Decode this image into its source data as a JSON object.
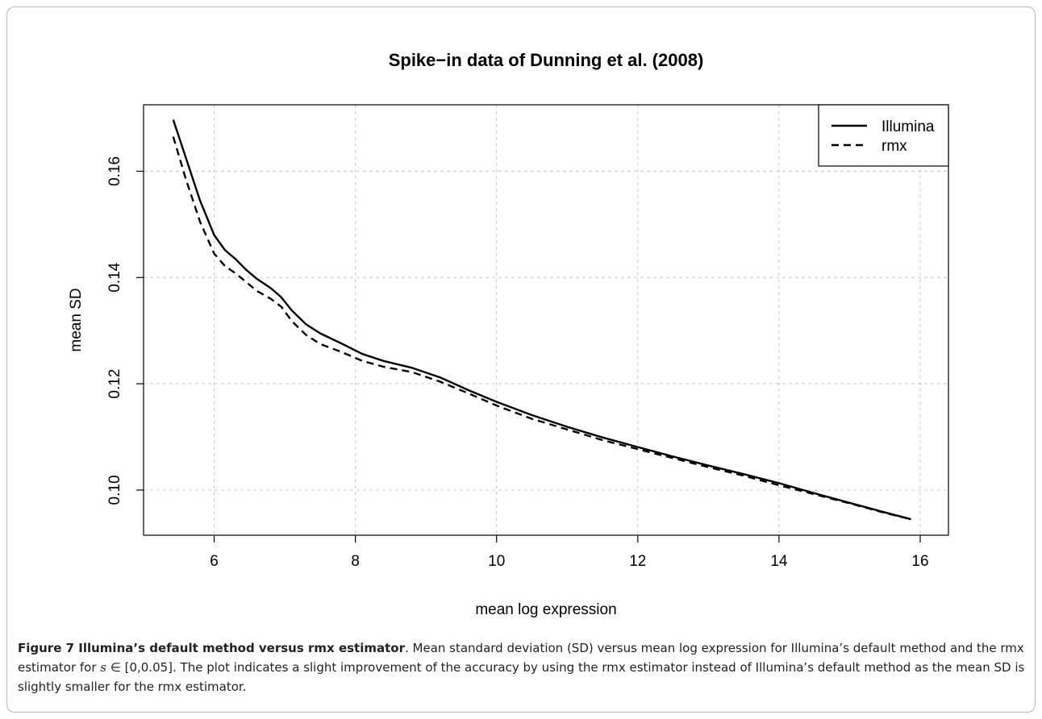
{
  "chart_data": {
    "type": "line",
    "title": "Spike−in data of Dunning et al. (2008)",
    "xlabel": "mean log expression",
    "ylabel": "mean SD",
    "xlim": [
      5.0,
      16.4
    ],
    "ylim": [
      0.0915,
      0.1725
    ],
    "x_ticks": [
      6,
      8,
      10,
      12,
      14,
      16
    ],
    "y_ticks": [
      0.1,
      0.12,
      0.14,
      0.16
    ],
    "x_tick_labels": [
      "6",
      "8",
      "10",
      "12",
      "14",
      "16"
    ],
    "y_tick_labels": [
      "0.10",
      "0.12",
      "0.14",
      "0.16"
    ],
    "grid": true,
    "legend_position": "top-right",
    "series": [
      {
        "name": "Illumina",
        "line_style": "solid",
        "x": [
          5.42,
          5.6,
          5.8,
          6.0,
          6.15,
          6.3,
          6.45,
          6.6,
          6.8,
          6.95,
          7.1,
          7.3,
          7.5,
          7.8,
          8.1,
          8.4,
          8.8,
          9.2,
          9.6,
          10.0,
          10.5,
          11.0,
          11.5,
          12.0,
          12.5,
          13.0,
          13.5,
          14.0,
          14.5,
          15.0,
          15.5,
          15.87
        ],
        "y": [
          0.1697,
          0.1625,
          0.1545,
          0.148,
          0.1452,
          0.1435,
          0.1415,
          0.1398,
          0.138,
          0.1363,
          0.1338,
          0.1312,
          0.1295,
          0.1276,
          0.1256,
          0.1243,
          0.123,
          0.1212,
          0.1188,
          0.1166,
          0.1141,
          0.1119,
          0.1099,
          0.1081,
          0.1063,
          0.1046,
          0.103,
          0.1013,
          0.0994,
          0.0976,
          0.0958,
          0.0945
        ]
      },
      {
        "name": "rmx",
        "line_style": "dashed",
        "x": [
          5.42,
          5.6,
          5.8,
          6.0,
          6.15,
          6.3,
          6.45,
          6.6,
          6.8,
          6.95,
          7.1,
          7.3,
          7.5,
          7.8,
          8.1,
          8.4,
          8.8,
          9.2,
          9.6,
          10.0,
          10.5,
          11.0,
          11.5,
          12.0,
          12.5,
          13.0,
          13.5,
          14.0,
          14.5,
          15.0,
          15.5,
          15.87
        ],
        "y": [
          0.1665,
          0.1585,
          0.1505,
          0.1445,
          0.1422,
          0.1408,
          0.1392,
          0.1375,
          0.136,
          0.1345,
          0.1318,
          0.1292,
          0.1275,
          0.126,
          0.1243,
          0.1232,
          0.1222,
          0.1204,
          0.1182,
          0.1159,
          0.1134,
          0.1114,
          0.1094,
          0.1077,
          0.106,
          0.1043,
          0.1027,
          0.1009,
          0.0992,
          0.0975,
          0.0957,
          0.0945
        ]
      }
    ]
  },
  "caption": {
    "label": "Figure 7 Illumina’s default method versus rmx estimator",
    "text_before_symbol": ". Mean standard deviation (SD) versus mean log expression for Illumina’s default method and the rmx estimator for ",
    "symbol": "s",
    "text_after_symbol": " ∈ [0,0.05]. The plot indicates a slight improvement of the accuracy by using the rmx estimator instead of Illumina’s default method as the mean SD is slightly smaller for the rmx estimator."
  }
}
